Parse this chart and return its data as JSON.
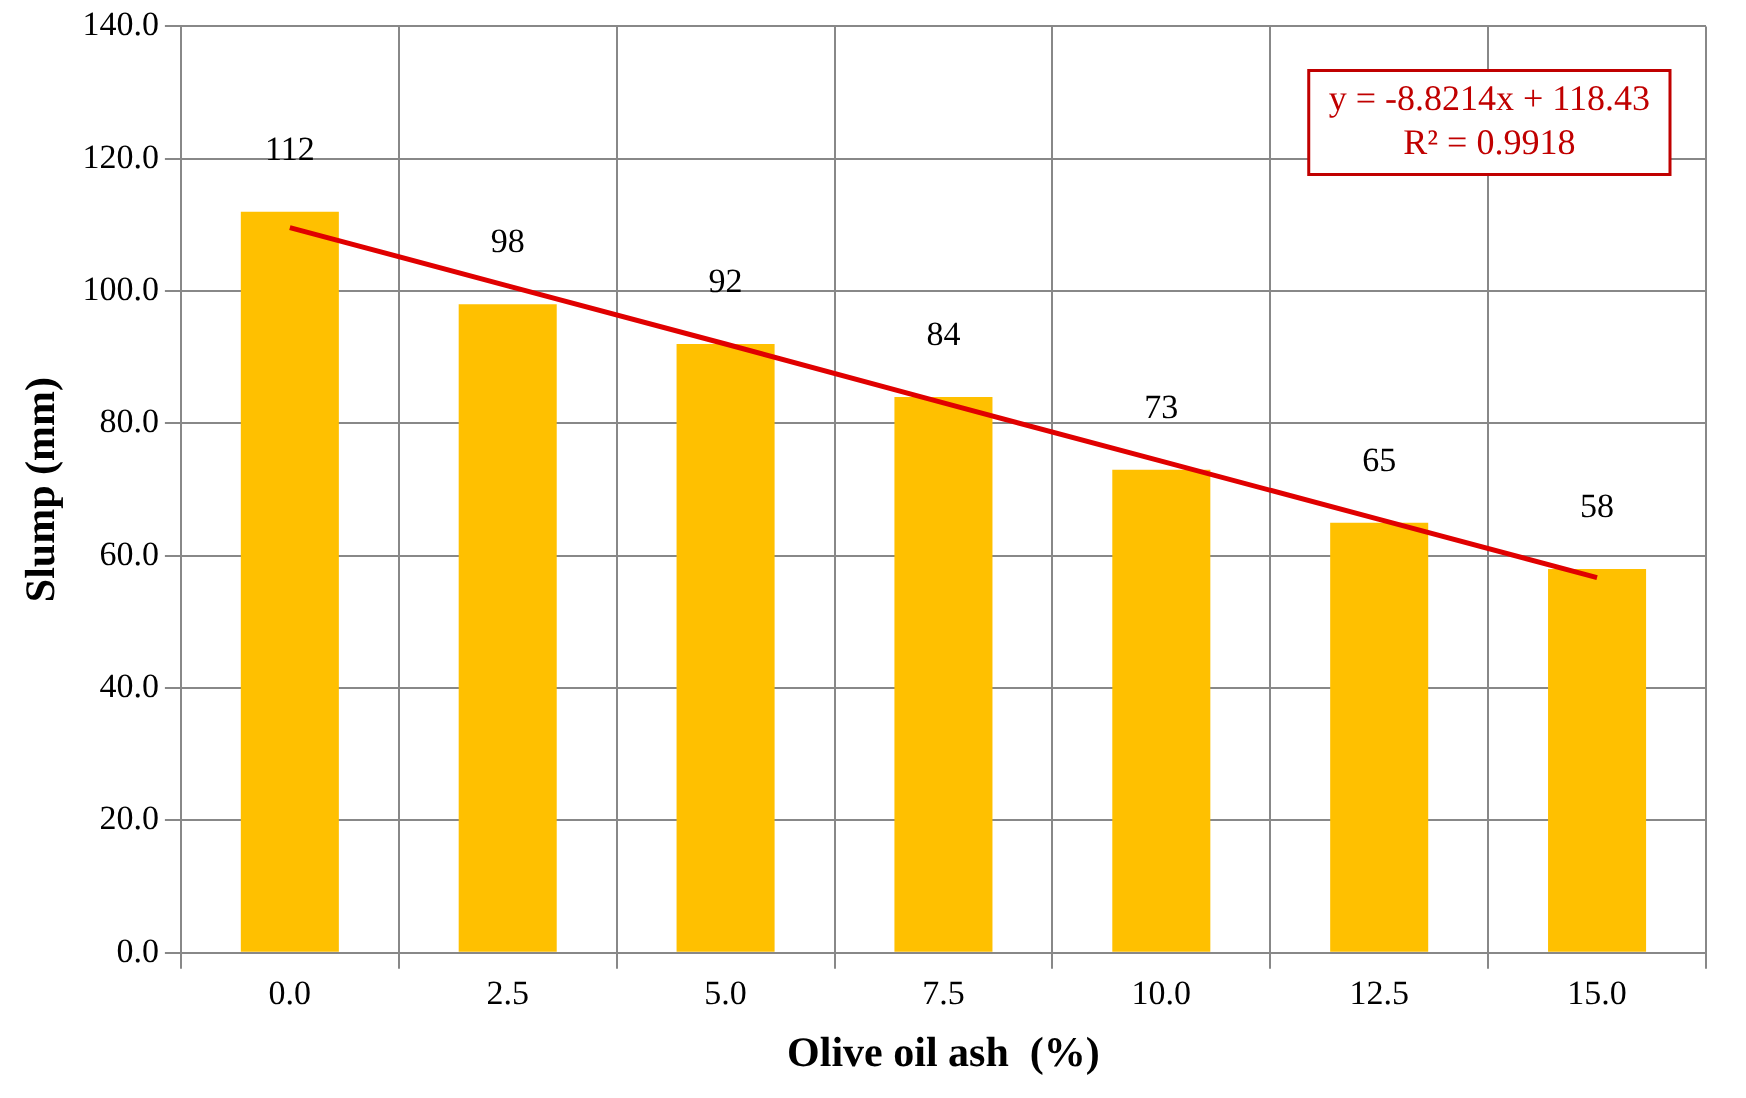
{
  "chart_data": {
    "type": "bar",
    "xlabel": "Olive oil ash  (%)",
    "ylabel": "Slump (mm)",
    "categories": [
      "0.0",
      "2.5",
      "5.0",
      "7.5",
      "10.0",
      "12.5",
      "15.0"
    ],
    "series": [
      {
        "color": "#ffc000",
        "values": [
          112,
          98,
          92,
          84,
          73,
          65,
          58
        ],
        "value_labels": [
          "112",
          "98",
          "92",
          "84",
          "73",
          "65",
          "58"
        ]
      },
      {
        "type": "line",
        "color": "#e00000",
        "values": [
          109.6,
          100.8,
          92.0,
          83.1,
          74.3,
          65.5,
          56.7
        ],
        "marker": "none",
        "line_style": "solid"
      }
    ],
    "ylim": [
      0,
      140
    ],
    "yticks": [
      {
        "value": 0,
        "label": "0.0"
      },
      {
        "value": 20,
        "label": "20.0"
      },
      {
        "value": 40,
        "label": "40.0"
      },
      {
        "value": 60,
        "label": "60.0"
      },
      {
        "value": 80,
        "label": "80.0"
      },
      {
        "value": 100,
        "label": "100.0"
      },
      {
        "value": 120,
        "label": "120.0"
      },
      {
        "value": 140,
        "label": "140.0"
      }
    ],
    "grid": true,
    "legend": false,
    "annotations": [
      "y = -8.8214x + 118.43",
      "R² = 0.9918"
    ]
  }
}
